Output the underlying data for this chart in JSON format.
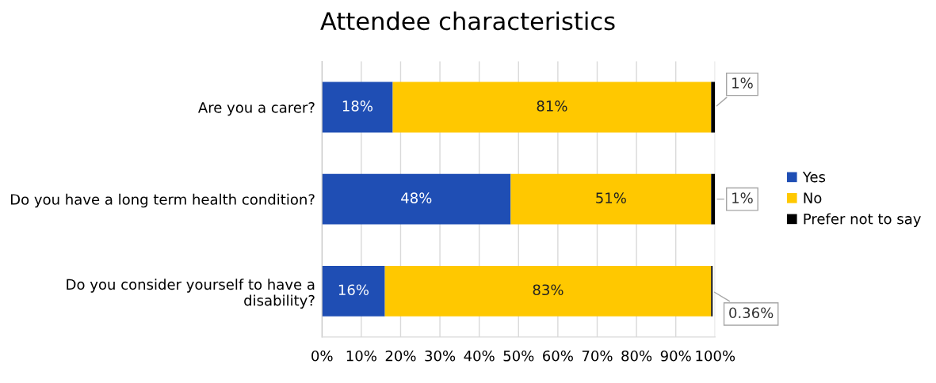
{
  "chart_data": {
    "type": "bar",
    "title": "Attendee characteristics",
    "orientation": "horizontal",
    "stacked": true,
    "categories": [
      "Are you a carer?",
      "Do you have a long term health condition?",
      "Do you consider yourself to have a disability?"
    ],
    "series": [
      {
        "name": "Yes",
        "color": "#1f4eb4",
        "values": [
          18,
          48,
          16
        ],
        "value_labels": [
          "18%",
          "48%",
          "16%"
        ]
      },
      {
        "name": "No",
        "color": "#ffc800",
        "values": [
          81,
          51,
          83
        ],
        "value_labels": [
          "81%",
          "51%",
          "83%"
        ]
      },
      {
        "name": "Prefer not to say",
        "color": "#000000",
        "values": [
          1,
          1,
          0.36
        ],
        "value_labels": [
          "1%",
          "1%",
          "0.36%"
        ]
      }
    ],
    "xlim": [
      0,
      100
    ],
    "xticks": [
      {
        "value": 0,
        "label": "0%"
      },
      {
        "value": 10,
        "label": "10%"
      },
      {
        "value": 20,
        "label": "20%"
      },
      {
        "value": 30,
        "label": "30%"
      },
      {
        "value": 40,
        "label": "40%"
      },
      {
        "value": 50,
        "label": "50%"
      },
      {
        "value": 60,
        "label": "60%"
      },
      {
        "value": 70,
        "label": "70%"
      },
      {
        "value": 80,
        "label": "80%"
      },
      {
        "value": 90,
        "label": "90%"
      },
      {
        "value": 100,
        "label": "100%"
      }
    ],
    "grid": "x",
    "legend": "right"
  }
}
